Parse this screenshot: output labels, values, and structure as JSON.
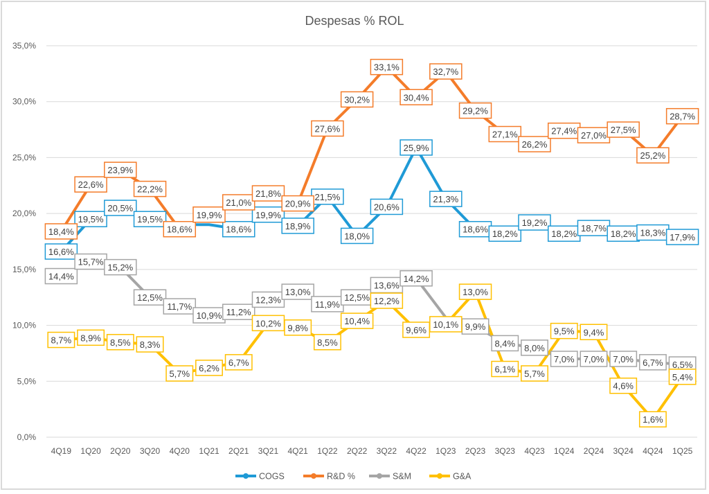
{
  "chart_data": {
    "type": "line",
    "title": "Despesas % ROL",
    "xlabel": "",
    "ylabel": "",
    "ylim": [
      0,
      35
    ],
    "ytick_step": 5,
    "ytick_labels": [
      "0,0%",
      "5,0%",
      "10,0%",
      "15,0%",
      "20,0%",
      "25,0%",
      "30,0%",
      "35,0%"
    ],
    "grid": true,
    "legend_position": "bottom",
    "categories": [
      "4Q19",
      "1Q20",
      "2Q20",
      "3Q20",
      "4Q20",
      "1Q21",
      "2Q21",
      "3Q21",
      "4Q21",
      "1Q22",
      "2Q22",
      "3Q22",
      "4Q22",
      "1Q23",
      "2Q23",
      "3Q23",
      "4Q23",
      "1Q24",
      "2Q24",
      "3Q24",
      "4Q24",
      "1Q25"
    ],
    "series": [
      {
        "name": "COGS",
        "color": "#1f9ad6",
        "values": [
          16.6,
          19.5,
          20.5,
          19.5,
          19.0,
          19.0,
          18.6,
          19.9,
          18.9,
          21.5,
          18.0,
          20.6,
          25.9,
          21.3,
          18.6,
          18.2,
          19.2,
          18.2,
          18.7,
          18.2,
          18.3,
          17.9
        ],
        "labels": [
          "16,6%",
          "19,5%",
          "20,5%",
          "19,5%",
          "",
          "",
          "18,6%",
          "19,9%",
          "18,9%",
          "21,5%",
          "18,0%",
          "20,6%",
          "25,9%",
          "21,3%",
          "18,6%",
          "18,2%",
          "19,2%",
          "18,2%",
          "18,7%",
          "18,2%",
          "18,3%",
          "17,9%"
        ]
      },
      {
        "name": "R&D %",
        "color": "#f47c2a",
        "values": [
          18.4,
          22.6,
          23.9,
          22.2,
          18.6,
          19.9,
          21.0,
          21.8,
          20.9,
          27.6,
          30.2,
          33.1,
          30.4,
          32.7,
          29.2,
          27.1,
          26.2,
          27.4,
          27.0,
          27.5,
          25.2,
          28.7
        ],
        "labels": [
          "18,4%",
          "22,6%",
          "23,9%",
          "22,2%",
          "18,6%",
          "19,9%",
          "21,0%",
          "21,8%",
          "20,9%",
          "27,6%",
          "30,2%",
          "33,1%",
          "30,4%",
          "32,7%",
          "29,2%",
          "27,1%",
          "26,2%",
          "27,4%",
          "27,0%",
          "27,5%",
          "25,2%",
          "28,7%"
        ]
      },
      {
        "name": "S&M",
        "color": "#a5a5a5",
        "values": [
          14.4,
          15.7,
          15.2,
          12.5,
          11.7,
          10.9,
          11.2,
          12.3,
          13.0,
          11.9,
          12.5,
          13.6,
          14.2,
          10.7,
          9.9,
          8.4,
          8.0,
          7.0,
          7.0,
          7.0,
          6.7,
          6.5
        ],
        "labels": [
          "14,4%",
          "15,7%",
          "15,2%",
          "12,5%",
          "11,7%",
          "10,9%",
          "11,2%",
          "12,3%",
          "13,0%",
          "11,9%",
          "12,5%",
          "13,6%",
          "14,2%",
          "",
          "9,9%",
          "8,4%",
          "8,0%",
          "7,0%",
          "7,0%",
          "7,0%",
          "6,7%",
          "6,5%"
        ]
      },
      {
        "name": "G&A",
        "color": "#ffc000",
        "values": [
          8.7,
          8.9,
          8.5,
          8.3,
          5.7,
          6.2,
          6.7,
          10.2,
          9.8,
          8.5,
          10.4,
          12.2,
          9.6,
          10.1,
          13.0,
          6.1,
          5.7,
          9.5,
          9.4,
          4.6,
          1.6,
          5.4
        ],
        "labels": [
          "8,7%",
          "8,9%",
          "8,5%",
          "8,3%",
          "5,7%",
          "6,2%",
          "6,7%",
          "10,2%",
          "9,8%",
          "8,5%",
          "10,4%",
          "12,2%",
          "9,6%",
          "10,1%",
          "13,0%",
          "6,1%",
          "5,7%",
          "9,5%",
          "9,4%",
          "4,6%",
          "1,6%",
          "5,4%"
        ]
      }
    ]
  }
}
